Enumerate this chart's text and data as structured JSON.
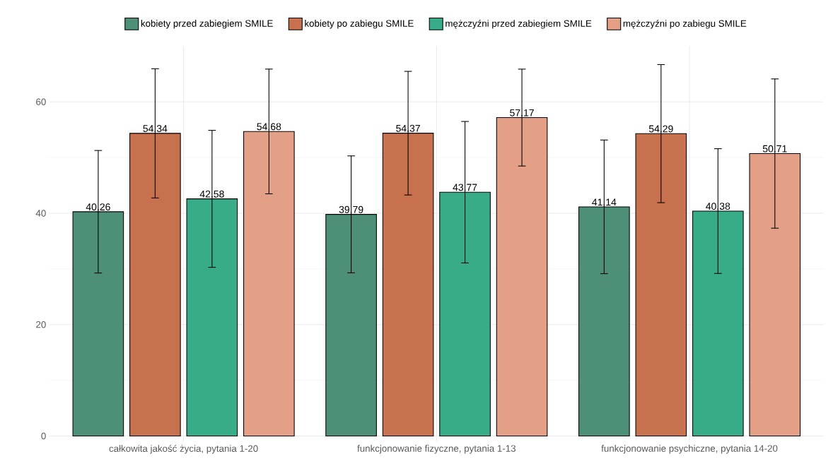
{
  "chart_data": {
    "type": "bar",
    "categories": [
      "całkowita jakość życia, pytania 1-20",
      "funkcjonowanie fizyczne, pytania 1-13",
      "funkcjonowanie psychiczne, pytania 14-20"
    ],
    "series": [
      {
        "name": "kobiety przed zabiegiem SMILE",
        "color": "#4e8f78",
        "values": [
          40.26,
          39.79,
          41.14
        ],
        "errors": [
          11.0,
          10.5,
          12.0
        ]
      },
      {
        "name": "kobiety po zabiegu SMILE",
        "color": "#c8714f",
        "values": [
          54.34,
          54.37,
          54.29
        ],
        "errors": [
          11.6,
          11.1,
          12.4
        ]
      },
      {
        "name": "mężczyźni przed zabiegiem SMILE",
        "color": "#38ab89",
        "values": [
          42.58,
          43.77,
          40.38
        ],
        "errors": [
          12.3,
          12.7,
          11.2
        ]
      },
      {
        "name": "mężczyźni po zabiegu SMILE",
        "color": "#e3a086",
        "values": [
          54.68,
          57.17,
          50.71
        ],
        "errors": [
          11.2,
          8.7,
          13.4
        ]
      }
    ],
    "ylim": [
      -1,
      70
    ],
    "yticks": [
      0,
      20,
      40,
      60
    ],
    "grid": true,
    "legend": "top",
    "data_labels": true
  }
}
